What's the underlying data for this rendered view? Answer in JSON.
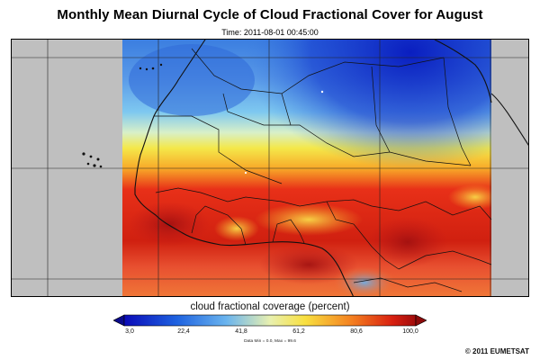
{
  "title": "Monthly Mean Diurnal Cycle of Cloud Fractional Cover for August",
  "time_label": "Time: 2011-08-01 00:45:00",
  "colorbar": {
    "label": "cloud fractional coverage (percent)",
    "ticks": [
      "3,0",
      "22,4",
      "41,8",
      "61,2",
      "80,6",
      "100,0"
    ],
    "min_value": 3.0,
    "max_value": 100.0
  },
  "stats": "Data Min = 0.0, Max = 99.6",
  "copyright": "© 2011 EUMETSAT",
  "colors": {
    "low": "#0a2ac8",
    "mid_low": "#7ec8f0",
    "mid": "#f4e84a",
    "high": "#e83018",
    "max": "#a01010",
    "no_data": "#bfbfbf"
  }
}
